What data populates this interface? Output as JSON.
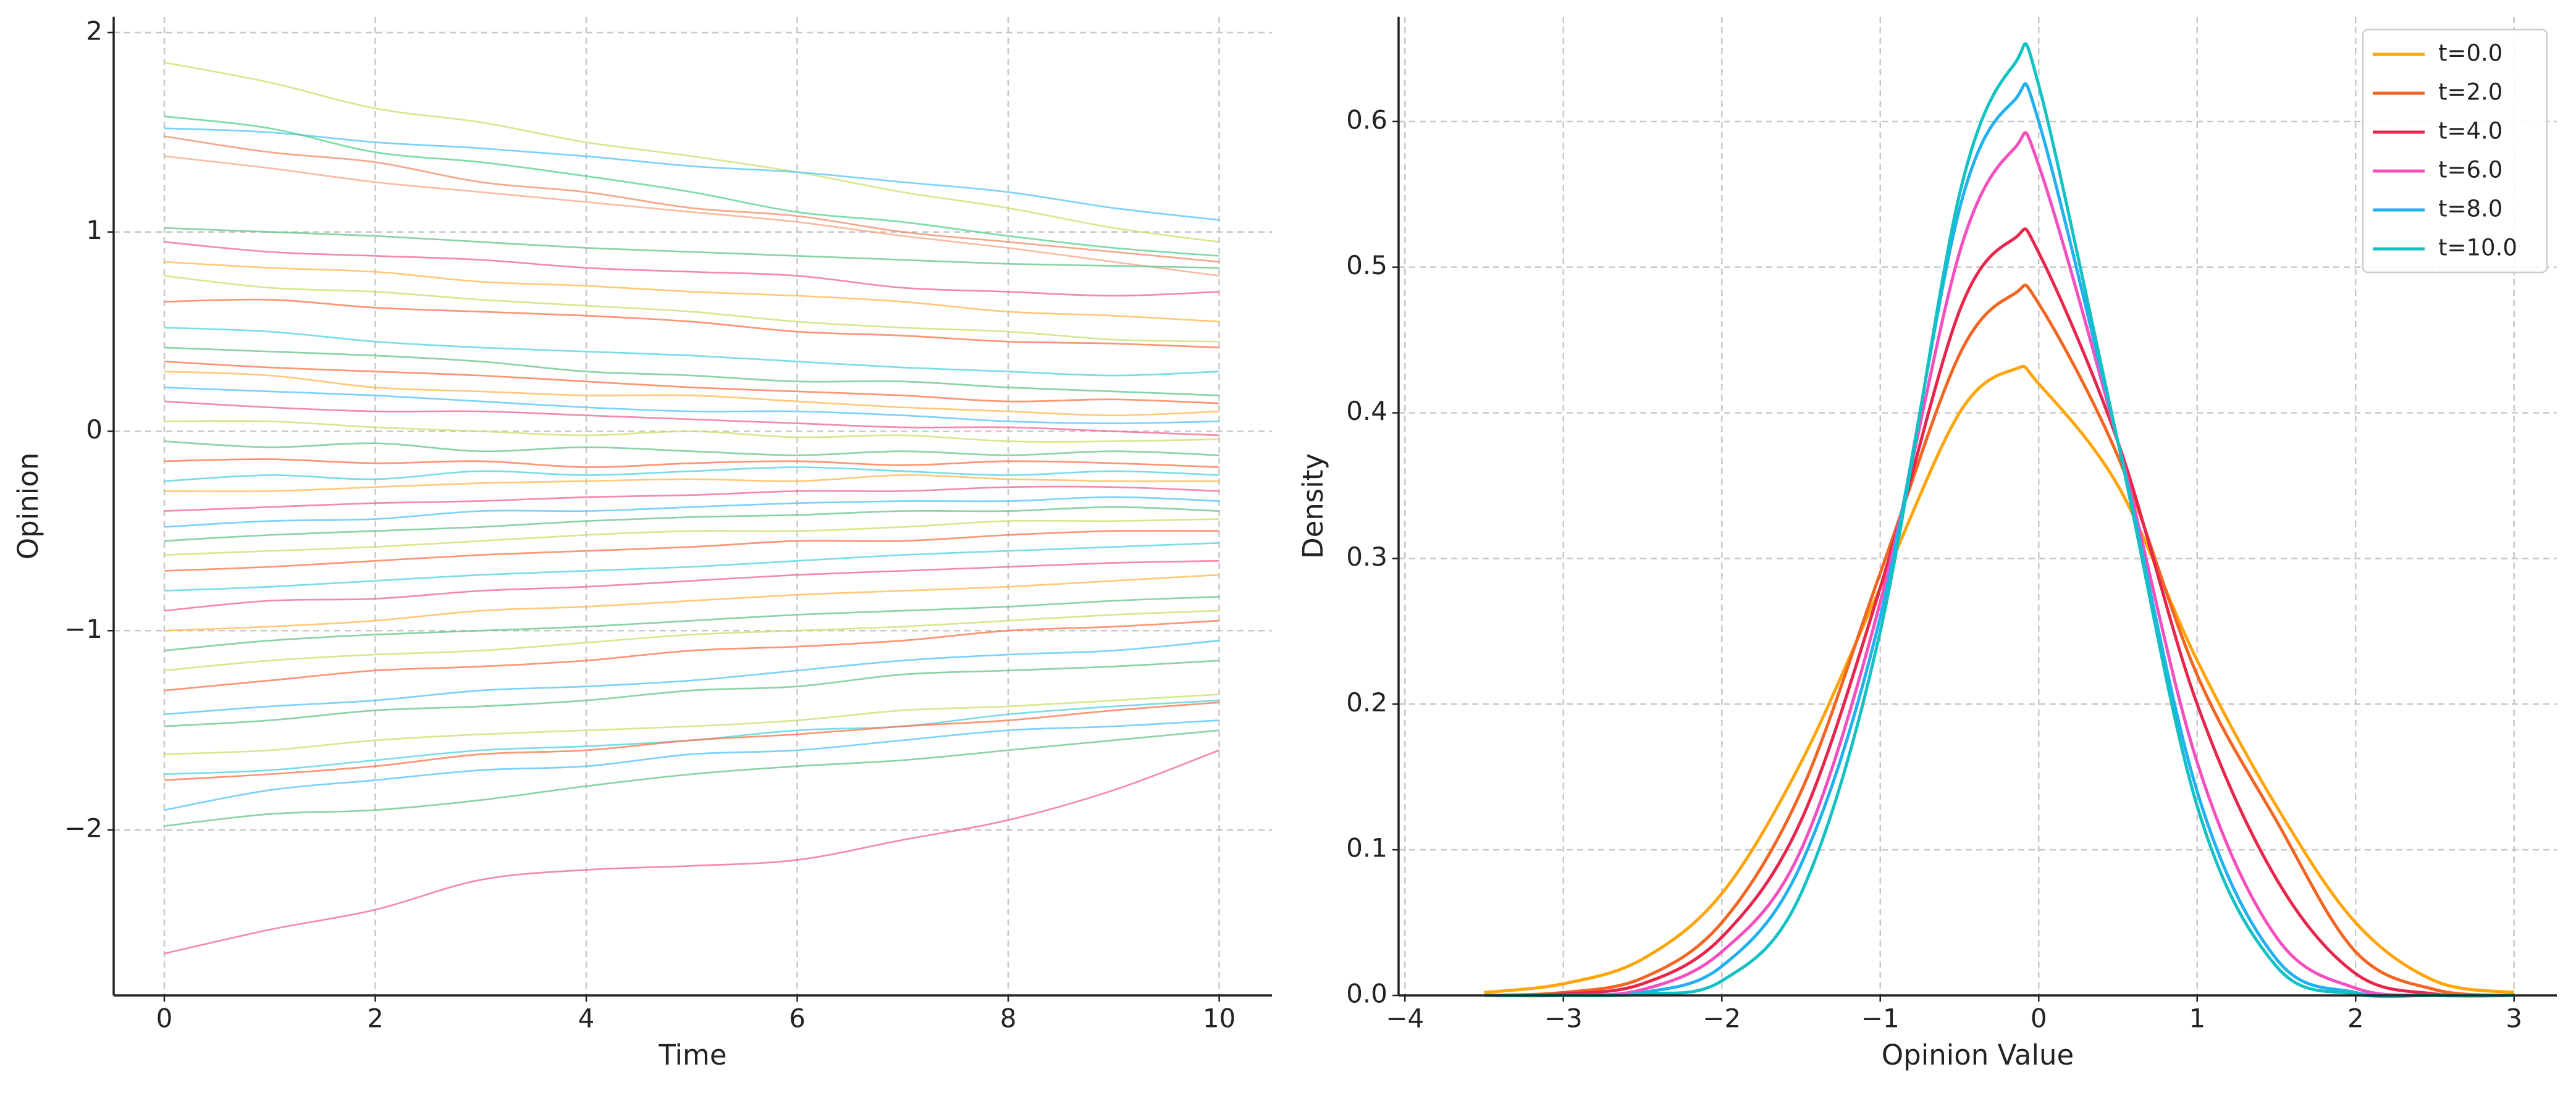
{
  "chart_data": [
    {
      "type": "line",
      "xlabel": "Time",
      "ylabel": "Opinion",
      "x": [
        0,
        1,
        2,
        3,
        4,
        5,
        6,
        7,
        8,
        9,
        10
      ],
      "xlim": [
        -0.48,
        10.5
      ],
      "xticks": [
        0,
        2,
        4,
        6,
        8,
        10
      ],
      "ylim": [
        -2.83,
        2.08
      ],
      "yticks": [
        {
          "value": -2,
          "label": "−2"
        },
        {
          "value": -1,
          "label": "−1"
        },
        0,
        1,
        2
      ],
      "grid": true,
      "series": [
        {
          "color": "#c5e06a",
          "values": [
            1.85,
            1.75,
            1.62,
            1.55,
            1.45,
            1.38,
            1.3,
            1.2,
            1.12,
            1.02,
            0.95
          ]
        },
        {
          "color": "#4fc3f7",
          "values": [
            1.52,
            1.5,
            1.45,
            1.42,
            1.38,
            1.33,
            1.3,
            1.25,
            1.2,
            1.12,
            1.06
          ]
        },
        {
          "color": "#4dd08a",
          "values": [
            1.58,
            1.52,
            1.4,
            1.35,
            1.28,
            1.2,
            1.1,
            1.05,
            0.98,
            0.92,
            0.88
          ]
        },
        {
          "color": "#ef8a62",
          "values": [
            1.48,
            1.4,
            1.35,
            1.25,
            1.2,
            1.12,
            1.08,
            1.0,
            0.95,
            0.9,
            0.85
          ]
        },
        {
          "color": "#f4a582",
          "values": [
            1.38,
            1.32,
            1.25,
            1.2,
            1.15,
            1.1,
            1.05,
            0.98,
            0.92,
            0.85,
            0.78
          ]
        },
        {
          "color": "#66c28a",
          "values": [
            1.02,
            1.0,
            0.98,
            0.95,
            0.92,
            0.9,
            0.88,
            0.86,
            0.84,
            0.83,
            0.82
          ]
        },
        {
          "color": "#f06292",
          "values": [
            0.95,
            0.9,
            0.88,
            0.86,
            0.82,
            0.8,
            0.78,
            0.72,
            0.7,
            0.68,
            0.7
          ]
        },
        {
          "color": "#ffb74d",
          "values": [
            0.85,
            0.82,
            0.8,
            0.75,
            0.73,
            0.7,
            0.68,
            0.65,
            0.6,
            0.58,
            0.55
          ]
        },
        {
          "color": "#c5e06a",
          "values": [
            0.78,
            0.72,
            0.7,
            0.66,
            0.63,
            0.6,
            0.55,
            0.52,
            0.5,
            0.46,
            0.45
          ]
        },
        {
          "color": "#ff7043",
          "values": [
            0.65,
            0.66,
            0.62,
            0.6,
            0.58,
            0.55,
            0.5,
            0.48,
            0.45,
            0.44,
            0.42
          ]
        },
        {
          "color": "#4dd0e1",
          "values": [
            0.52,
            0.5,
            0.45,
            0.42,
            0.4,
            0.38,
            0.35,
            0.32,
            0.3,
            0.28,
            0.3
          ]
        },
        {
          "color": "#66c28a",
          "values": [
            0.42,
            0.4,
            0.38,
            0.35,
            0.3,
            0.28,
            0.25,
            0.25,
            0.22,
            0.2,
            0.18
          ]
        },
        {
          "color": "#ff7043",
          "values": [
            0.35,
            0.32,
            0.3,
            0.28,
            0.25,
            0.22,
            0.2,
            0.18,
            0.15,
            0.16,
            0.14
          ]
        },
        {
          "color": "#ffb74d",
          "values": [
            0.3,
            0.28,
            0.22,
            0.2,
            0.18,
            0.18,
            0.15,
            0.12,
            0.1,
            0.08,
            0.1
          ]
        },
        {
          "color": "#4fc3f7",
          "values": [
            0.22,
            0.2,
            0.18,
            0.15,
            0.12,
            0.1,
            0.1,
            0.08,
            0.05,
            0.04,
            0.05
          ]
        },
        {
          "color": "#f06292",
          "values": [
            0.15,
            0.12,
            0.1,
            0.1,
            0.08,
            0.06,
            0.04,
            0.02,
            0.02,
            0.0,
            -0.02
          ]
        },
        {
          "color": "#c5e06a",
          "values": [
            0.05,
            0.05,
            0.02,
            0.0,
            -0.02,
            0.0,
            -0.03,
            -0.02,
            -0.05,
            -0.05,
            -0.04
          ]
        },
        {
          "color": "#66c28a",
          "values": [
            -0.05,
            -0.08,
            -0.06,
            -0.1,
            -0.08,
            -0.1,
            -0.12,
            -0.1,
            -0.12,
            -0.1,
            -0.12
          ]
        },
        {
          "color": "#ff7043",
          "values": [
            -0.15,
            -0.14,
            -0.16,
            -0.15,
            -0.18,
            -0.16,
            -0.15,
            -0.17,
            -0.15,
            -0.16,
            -0.18
          ]
        },
        {
          "color": "#4dd0e1",
          "values": [
            -0.25,
            -0.22,
            -0.24,
            -0.2,
            -0.22,
            -0.2,
            -0.18,
            -0.2,
            -0.22,
            -0.2,
            -0.22
          ]
        },
        {
          "color": "#ffb74d",
          "values": [
            -0.3,
            -0.3,
            -0.28,
            -0.26,
            -0.25,
            -0.24,
            -0.25,
            -0.22,
            -0.24,
            -0.25,
            -0.25
          ]
        },
        {
          "color": "#f06292",
          "values": [
            -0.4,
            -0.38,
            -0.36,
            -0.35,
            -0.33,
            -0.32,
            -0.3,
            -0.3,
            -0.28,
            -0.28,
            -0.3
          ]
        },
        {
          "color": "#4fc3f7",
          "values": [
            -0.48,
            -0.45,
            -0.44,
            -0.4,
            -0.4,
            -0.38,
            -0.36,
            -0.35,
            -0.35,
            -0.33,
            -0.35
          ]
        },
        {
          "color": "#66c28a",
          "values": [
            -0.55,
            -0.52,
            -0.5,
            -0.48,
            -0.45,
            -0.43,
            -0.42,
            -0.4,
            -0.4,
            -0.38,
            -0.4
          ]
        },
        {
          "color": "#c5e06a",
          "values": [
            -0.62,
            -0.6,
            -0.58,
            -0.55,
            -0.52,
            -0.5,
            -0.5,
            -0.48,
            -0.45,
            -0.45,
            -0.44
          ]
        },
        {
          "color": "#ff7043",
          "values": [
            -0.7,
            -0.68,
            -0.65,
            -0.62,
            -0.6,
            -0.58,
            -0.55,
            -0.55,
            -0.52,
            -0.5,
            -0.5
          ]
        },
        {
          "color": "#4dd0e1",
          "values": [
            -0.8,
            -0.78,
            -0.75,
            -0.72,
            -0.7,
            -0.68,
            -0.65,
            -0.62,
            -0.6,
            -0.58,
            -0.56
          ]
        },
        {
          "color": "#f06292",
          "values": [
            -0.9,
            -0.85,
            -0.84,
            -0.8,
            -0.78,
            -0.75,
            -0.72,
            -0.7,
            -0.68,
            -0.66,
            -0.65
          ]
        },
        {
          "color": "#ffb74d",
          "values": [
            -1.0,
            -0.98,
            -0.95,
            -0.9,
            -0.88,
            -0.85,
            -0.82,
            -0.8,
            -0.78,
            -0.75,
            -0.72
          ]
        },
        {
          "color": "#66c28a",
          "values": [
            -1.1,
            -1.05,
            -1.02,
            -1.0,
            -0.98,
            -0.95,
            -0.92,
            -0.9,
            -0.88,
            -0.85,
            -0.83
          ]
        },
        {
          "color": "#c5e06a",
          "values": [
            -1.2,
            -1.15,
            -1.12,
            -1.1,
            -1.06,
            -1.02,
            -1.0,
            -0.98,
            -0.95,
            -0.92,
            -0.9
          ]
        },
        {
          "color": "#ff7043",
          "values": [
            -1.3,
            -1.25,
            -1.2,
            -1.18,
            -1.15,
            -1.1,
            -1.08,
            -1.05,
            -1.0,
            -0.98,
            -0.95
          ]
        },
        {
          "color": "#4fc3f7",
          "values": [
            -1.42,
            -1.38,
            -1.35,
            -1.3,
            -1.28,
            -1.25,
            -1.2,
            -1.15,
            -1.12,
            -1.1,
            -1.05
          ]
        },
        {
          "color": "#66c28a",
          "values": [
            -1.48,
            -1.45,
            -1.4,
            -1.38,
            -1.35,
            -1.3,
            -1.28,
            -1.22,
            -1.2,
            -1.18,
            -1.15
          ]
        },
        {
          "color": "#c5e06a",
          "values": [
            -1.62,
            -1.6,
            -1.55,
            -1.52,
            -1.5,
            -1.48,
            -1.45,
            -1.4,
            -1.38,
            -1.35,
            -1.32
          ]
        },
        {
          "color": "#4dd0e1",
          "values": [
            -1.72,
            -1.7,
            -1.65,
            -1.6,
            -1.58,
            -1.55,
            -1.5,
            -1.48,
            -1.42,
            -1.38,
            -1.35
          ]
        },
        {
          "color": "#ff7043",
          "values": [
            -1.75,
            -1.72,
            -1.68,
            -1.62,
            -1.6,
            -1.55,
            -1.52,
            -1.48,
            -1.45,
            -1.4,
            -1.36
          ]
        },
        {
          "color": "#4fc3f7",
          "values": [
            -1.9,
            -1.8,
            -1.75,
            -1.7,
            -1.68,
            -1.62,
            -1.6,
            -1.55,
            -1.5,
            -1.48,
            -1.45
          ]
        },
        {
          "color": "#66c28a",
          "values": [
            -1.98,
            -1.92,
            -1.9,
            -1.85,
            -1.78,
            -1.72,
            -1.68,
            -1.65,
            -1.6,
            -1.55,
            -1.5
          ]
        },
        {
          "color": "#f06292",
          "values": [
            -2.62,
            -2.5,
            -2.4,
            -2.25,
            -2.2,
            -2.18,
            -2.15,
            -2.05,
            -1.95,
            -1.8,
            -1.6
          ]
        }
      ]
    },
    {
      "type": "line",
      "xlabel": "Opinion Value",
      "ylabel": "Density",
      "x": [
        -3.5,
        -3,
        -2.5,
        -2,
        -1.5,
        -1,
        -0.5,
        -0.15,
        0,
        0.5,
        1,
        1.5,
        2,
        2.5,
        3
      ],
      "xlim": [
        -4.04,
        3.27
      ],
      "xticks": [
        {
          "value": -4,
          "label": "−4"
        },
        {
          "value": -3,
          "label": "−3"
        },
        {
          "value": -2,
          "label": "−2"
        },
        {
          "value": -1,
          "label": "−1"
        },
        0,
        1,
        2,
        3
      ],
      "ylim": [
        0,
        0.672
      ],
      "yticks": [
        {
          "value": 0,
          "label": "0.0"
        },
        0.1,
        0.2,
        0.3,
        0.4,
        0.5,
        0.6
      ],
      "grid": true,
      "legend": "upper right",
      "series": [
        {
          "name": "t=0.0",
          "color": "#ffa50a",
          "values": [
            0.002,
            0.008,
            0.025,
            0.07,
            0.16,
            0.28,
            0.4,
            0.43,
            0.42,
            0.35,
            0.23,
            0.13,
            0.05,
            0.01,
            0.002
          ]
        },
        {
          "name": "t=2.0",
          "color": "#f26522",
          "values": [
            0,
            0.002,
            0.012,
            0.05,
            0.14,
            0.29,
            0.44,
            0.482,
            0.475,
            0.37,
            0.22,
            0.12,
            0.03,
            0.004,
            0
          ]
        },
        {
          "name": "t=4.0",
          "color": "#e8254a",
          "values": [
            0,
            0.001,
            0.008,
            0.04,
            0.12,
            0.28,
            0.47,
            0.52,
            0.51,
            0.38,
            0.2,
            0.08,
            0.015,
            0.001,
            0
          ]
        },
        {
          "name": "t=6.0",
          "color": "#f54fbe",
          "values": [
            0,
            0,
            0.004,
            0.03,
            0.1,
            0.27,
            0.51,
            0.582,
            0.57,
            0.38,
            0.16,
            0.04,
            0.005,
            0,
            0
          ]
        },
        {
          "name": "t=8.0",
          "color": "#21b0f0",
          "values": [
            0,
            0,
            0.002,
            0.02,
            0.09,
            0.26,
            0.54,
            0.615,
            0.6,
            0.38,
            0.14,
            0.025,
            0.002,
            0,
            0
          ]
        },
        {
          "name": "t=10.0",
          "color": "#12c2c2",
          "values": [
            0,
            0,
            0.001,
            0.01,
            0.07,
            0.25,
            0.55,
            0.64,
            0.625,
            0.38,
            0.13,
            0.02,
            0.001,
            0,
            0
          ]
        }
      ]
    }
  ]
}
